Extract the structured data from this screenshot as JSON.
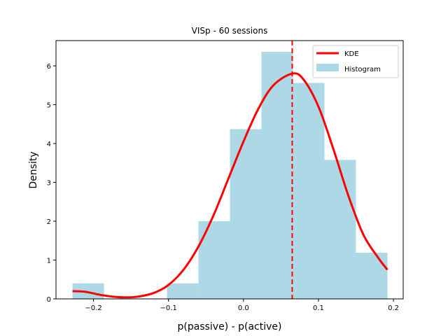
{
  "chart_data": {
    "type": "bar",
    "title": "VISp - 60 sessions",
    "xlabel": "p(passive) - p(active)",
    "ylabel": "Density",
    "xlim": [
      -0.25,
      0.213
    ],
    "ylim": [
      0,
      6.65
    ],
    "xticks": [
      -0.2,
      -0.1,
      0.0,
      0.1,
      0.2
    ],
    "xtick_labels": [
      "−0.2",
      "−0.1",
      "0.0",
      "0.1",
      "0.2"
    ],
    "yticks": [
      0,
      1,
      2,
      3,
      4,
      5,
      6
    ],
    "ytick_labels": [
      "0",
      "1",
      "2",
      "3",
      "4",
      "5",
      "6"
    ],
    "grid": false,
    "legend_position": "top-right",
    "histogram": {
      "name": "Histogram",
      "color": "#add8e6",
      "bin_edges": [
        -0.228,
        -0.186,
        -0.144,
        -0.102,
        -0.06,
        -0.018,
        0.024,
        0.066,
        0.108,
        0.15,
        0.192
      ],
      "density": [
        0.4,
        0.0,
        0.0,
        0.4,
        2.0,
        4.37,
        6.36,
        5.56,
        3.58,
        1.19
      ]
    },
    "kde": {
      "name": "KDE",
      "color": "#ff0000",
      "x": [
        -0.228,
        -0.21,
        -0.19,
        -0.17,
        -0.155,
        -0.14,
        -0.12,
        -0.1,
        -0.08,
        -0.06,
        -0.04,
        -0.02,
        0.0,
        0.02,
        0.04,
        0.065,
        0.08,
        0.1,
        0.12,
        0.14,
        0.16,
        0.18,
        0.192
      ],
      "y": [
        0.2,
        0.18,
        0.1,
        0.05,
        0.04,
        0.06,
        0.15,
        0.36,
        0.75,
        1.35,
        2.15,
        3.1,
        4.05,
        4.9,
        5.5,
        5.8,
        5.65,
        4.95,
        3.85,
        2.65,
        1.65,
        1.05,
        0.75
      ]
    },
    "mean_line": {
      "x": 0.065,
      "color": "#ff0000",
      "style": "dashed"
    },
    "legend": [
      "KDE",
      "Histogram"
    ]
  }
}
